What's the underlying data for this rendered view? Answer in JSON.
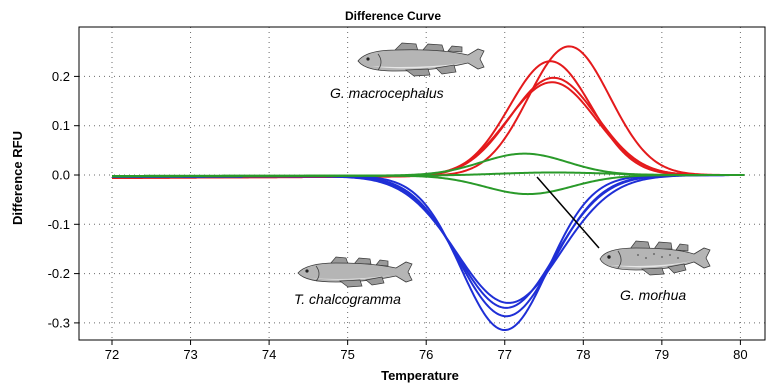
{
  "chart_data": {
    "type": "line",
    "title": "Difference Curve",
    "xlabel": "Temperature",
    "ylabel": "Difference RFU",
    "xlim": [
      72,
      80.2
    ],
    "ylim": [
      -0.32,
      0.29
    ],
    "xticks": [
      72,
      73,
      74,
      75,
      76,
      77,
      78,
      79,
      80
    ],
    "yticks": [
      -0.3,
      -0.2,
      -0.1,
      0.0,
      0.1,
      0.2
    ],
    "grid": true,
    "annotations": [
      "G. macrocephalus",
      "T. chalcogramma",
      "G. morhua"
    ],
    "colors": {
      "red": "#e41a1c",
      "blue": "#1f2fd6",
      "green": "#2a9a2a",
      "pointer": "#000000"
    },
    "series": [
      {
        "group": "G. macrocephalus",
        "color": "#e41a1c",
        "peak_x": 77.82,
        "peak_y": 0.262,
        "sigma": 0.52,
        "baseline_start": -0.004
      },
      {
        "group": "G. macrocephalus",
        "color": "#e41a1c",
        "peak_x": 77.58,
        "peak_y": 0.232,
        "sigma": 0.52,
        "baseline_start": -0.004
      },
      {
        "group": "G. macrocephalus",
        "color": "#e41a1c",
        "peak_x": 77.62,
        "peak_y": 0.199,
        "sigma": 0.55,
        "baseline_start": -0.006
      },
      {
        "group": "G. macrocephalus",
        "color": "#e41a1c",
        "peak_x": 77.6,
        "peak_y": 0.19,
        "sigma": 0.56,
        "baseline_start": -0.006
      },
      {
        "group": "T. chalcogramma",
        "color": "#1f2fd6",
        "peak_x": 77.0,
        "peak_y": -0.313,
        "sigma": 0.55,
        "baseline_start": -0.004
      },
      {
        "group": "T. chalcogramma",
        "color": "#1f2fd6",
        "peak_x": 77.02,
        "peak_y": -0.285,
        "sigma": 0.6,
        "baseline_start": -0.004
      },
      {
        "group": "T. chalcogramma",
        "color": "#1f2fd6",
        "peak_x": 77.02,
        "peak_y": -0.268,
        "sigma": 0.62,
        "baseline_start": -0.004
      },
      {
        "group": "T. chalcogramma",
        "color": "#1f2fd6",
        "peak_x": 77.05,
        "peak_y": -0.258,
        "sigma": 0.66,
        "baseline_start": -0.004
      },
      {
        "group": "G. morhua",
        "color": "#2a9a2a",
        "peak_x": 77.25,
        "peak_y": 0.044,
        "sigma": 0.55,
        "baseline_start": -0.002
      },
      {
        "group": "G. morhua",
        "color": "#2a9a2a",
        "peak_x": 77.3,
        "peak_y": -0.038,
        "sigma": 0.55,
        "baseline_start": -0.002
      },
      {
        "group": "G. morhua",
        "color": "#2a9a2a",
        "peak_x": 77.6,
        "peak_y": 0.006,
        "sigma": 0.7,
        "baseline_start": -0.003
      }
    ]
  }
}
